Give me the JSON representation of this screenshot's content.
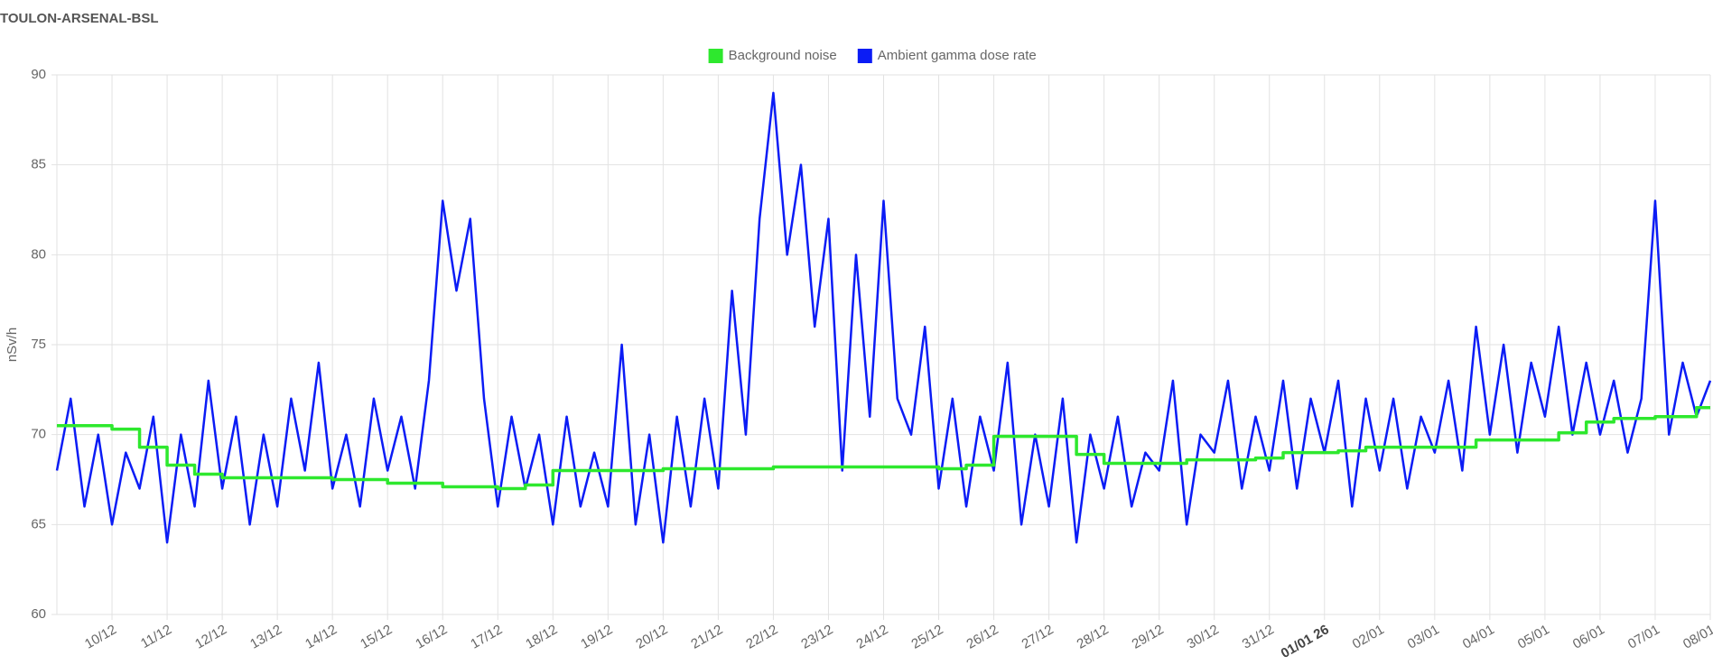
{
  "chart_data": {
    "type": "line",
    "title": "TOULON-ARSENAL-BSL",
    "y_label": "nSv/h",
    "x": [
      0,
      0.25,
      0.5,
      0.75,
      1,
      1.25,
      1.5,
      1.75,
      2,
      2.25,
      2.5,
      2.75,
      3,
      3.25,
      3.5,
      3.75,
      4,
      4.25,
      4.5,
      4.75,
      5,
      5.25,
      5.5,
      5.75,
      6,
      6.25,
      6.5,
      6.75,
      7,
      7.25,
      7.5,
      7.75,
      8,
      8.25,
      8.5,
      8.75,
      9,
      9.25,
      9.5,
      9.75,
      10,
      10.25,
      10.5,
      10.75,
      11,
      11.25,
      11.5,
      11.75,
      12,
      12.25,
      12.5,
      12.75,
      13,
      13.25,
      13.5,
      13.75,
      14,
      14.25,
      14.5,
      14.75,
      15,
      15.25,
      15.5,
      15.75,
      16,
      16.25,
      16.5,
      16.75,
      17,
      17.25,
      17.5,
      17.75,
      18,
      18.25,
      18.5,
      18.75,
      19,
      19.25,
      19.5,
      19.75,
      20,
      20.25,
      20.5,
      20.75,
      21,
      21.25,
      21.5,
      21.75,
      22,
      22.25,
      22.5,
      22.75,
      23,
      23.25,
      23.5,
      23.75,
      24,
      24.25,
      24.5,
      24.75,
      25,
      25.25,
      25.5,
      25.75,
      26,
      26.25,
      26.5,
      26.75,
      27,
      27.25,
      27.5,
      27.75,
      28,
      28.25,
      28.5,
      28.75,
      29,
      29.25,
      29.5,
      29.75,
      30
    ],
    "series": [
      {
        "name": "Background noise",
        "color": "#2ee82e",
        "step": true,
        "values": [
          70.5,
          70.5,
          70.5,
          70.5,
          70.3,
          70.3,
          69.3,
          69.3,
          68.3,
          68.3,
          67.8,
          67.8,
          67.6,
          67.6,
          67.6,
          67.6,
          67.6,
          67.6,
          67.6,
          67.6,
          67.5,
          67.5,
          67.5,
          67.5,
          67.3,
          67.3,
          67.3,
          67.3,
          67.1,
          67.1,
          67.1,
          67.1,
          67.0,
          67.0,
          67.2,
          67.2,
          68.0,
          68.0,
          68.0,
          68.0,
          68.0,
          68.0,
          68.0,
          68.0,
          68.1,
          68.1,
          68.1,
          68.1,
          68.1,
          68.1,
          68.1,
          68.1,
          68.2,
          68.2,
          68.2,
          68.2,
          68.2,
          68.2,
          68.2,
          68.2,
          68.2,
          68.2,
          68.2,
          68.2,
          68.1,
          68.1,
          68.3,
          68.3,
          69.9,
          69.9,
          69.9,
          69.9,
          69.9,
          69.9,
          68.9,
          68.9,
          68.4,
          68.4,
          68.4,
          68.4,
          68.4,
          68.4,
          68.6,
          68.6,
          68.6,
          68.6,
          68.6,
          68.7,
          68.7,
          69.0,
          69.0,
          69.0,
          69.0,
          69.1,
          69.1,
          69.3,
          69.3,
          69.3,
          69.3,
          69.3,
          69.3,
          69.3,
          69.3,
          69.7,
          69.7,
          69.7,
          69.7,
          69.7,
          69.7,
          70.1,
          70.1,
          70.7,
          70.7,
          70.9,
          70.9,
          70.9,
          71.0,
          71.0,
          71.0,
          71.5,
          71.5
        ]
      },
      {
        "name": "Ambient gamma dose rate",
        "color": "#0b1cf5",
        "step": false,
        "values": [
          68,
          72,
          66,
          70,
          65,
          69,
          67,
          71,
          64,
          70,
          66,
          73,
          67,
          71,
          65,
          70,
          66,
          72,
          68,
          74,
          67,
          70,
          66,
          72,
          68,
          71,
          67,
          73,
          83,
          78,
          82,
          72,
          66,
          71,
          67,
          70,
          65,
          71,
          66,
          69,
          66,
          75,
          65,
          70,
          64,
          71,
          66,
          72,
          67,
          78,
          70,
          82,
          89,
          80,
          85,
          76,
          82,
          68,
          80,
          71,
          83,
          72,
          70,
          76,
          67,
          72,
          66,
          71,
          68,
          74,
          65,
          70,
          66,
          72,
          64,
          70,
          67,
          71,
          66,
          69,
          68,
          73,
          65,
          70,
          69,
          73,
          67,
          71,
          68,
          73,
          67,
          72,
          69,
          73,
          66,
          72,
          68,
          72,
          67,
          71,
          69,
          73,
          68,
          76,
          70,
          75,
          69,
          74,
          71,
          76,
          70,
          74,
          70,
          73,
          69,
          72,
          83,
          70,
          74,
          71,
          73
        ]
      }
    ],
    "xlim": [
      0,
      30
    ],
    "xticks": [
      {
        "value": 1,
        "label": "10/12"
      },
      {
        "value": 2,
        "label": "11/12"
      },
      {
        "value": 3,
        "label": "12/12"
      },
      {
        "value": 4,
        "label": "13/12"
      },
      {
        "value": 5,
        "label": "14/12"
      },
      {
        "value": 6,
        "label": "15/12"
      },
      {
        "value": 7,
        "label": "16/12"
      },
      {
        "value": 8,
        "label": "17/12"
      },
      {
        "value": 9,
        "label": "18/12"
      },
      {
        "value": 10,
        "label": "19/12"
      },
      {
        "value": 11,
        "label": "20/12"
      },
      {
        "value": 12,
        "label": "21/12"
      },
      {
        "value": 13,
        "label": "22/12"
      },
      {
        "value": 14,
        "label": "23/12"
      },
      {
        "value": 15,
        "label": "24/12"
      },
      {
        "value": 16,
        "label": "25/12"
      },
      {
        "value": 17,
        "label": "26/12"
      },
      {
        "value": 18,
        "label": "27/12"
      },
      {
        "value": 19,
        "label": "28/12"
      },
      {
        "value": 20,
        "label": "29/12"
      },
      {
        "value": 21,
        "label": "30/12"
      },
      {
        "value": 22,
        "label": "31/12"
      },
      {
        "value": 23,
        "label": "01/01 26",
        "bold": true
      },
      {
        "value": 24,
        "label": "02/01"
      },
      {
        "value": 25,
        "label": "03/01"
      },
      {
        "value": 26,
        "label": "04/01"
      },
      {
        "value": 27,
        "label": "05/01"
      },
      {
        "value": 28,
        "label": "06/01"
      },
      {
        "value": 29,
        "label": "07/01"
      },
      {
        "value": 30,
        "label": "08/01"
      }
    ],
    "ylim": [
      60,
      90
    ],
    "yticks": [
      60,
      65,
      70,
      75,
      80,
      85,
      90
    ],
    "grid": true,
    "legend": "top"
  }
}
